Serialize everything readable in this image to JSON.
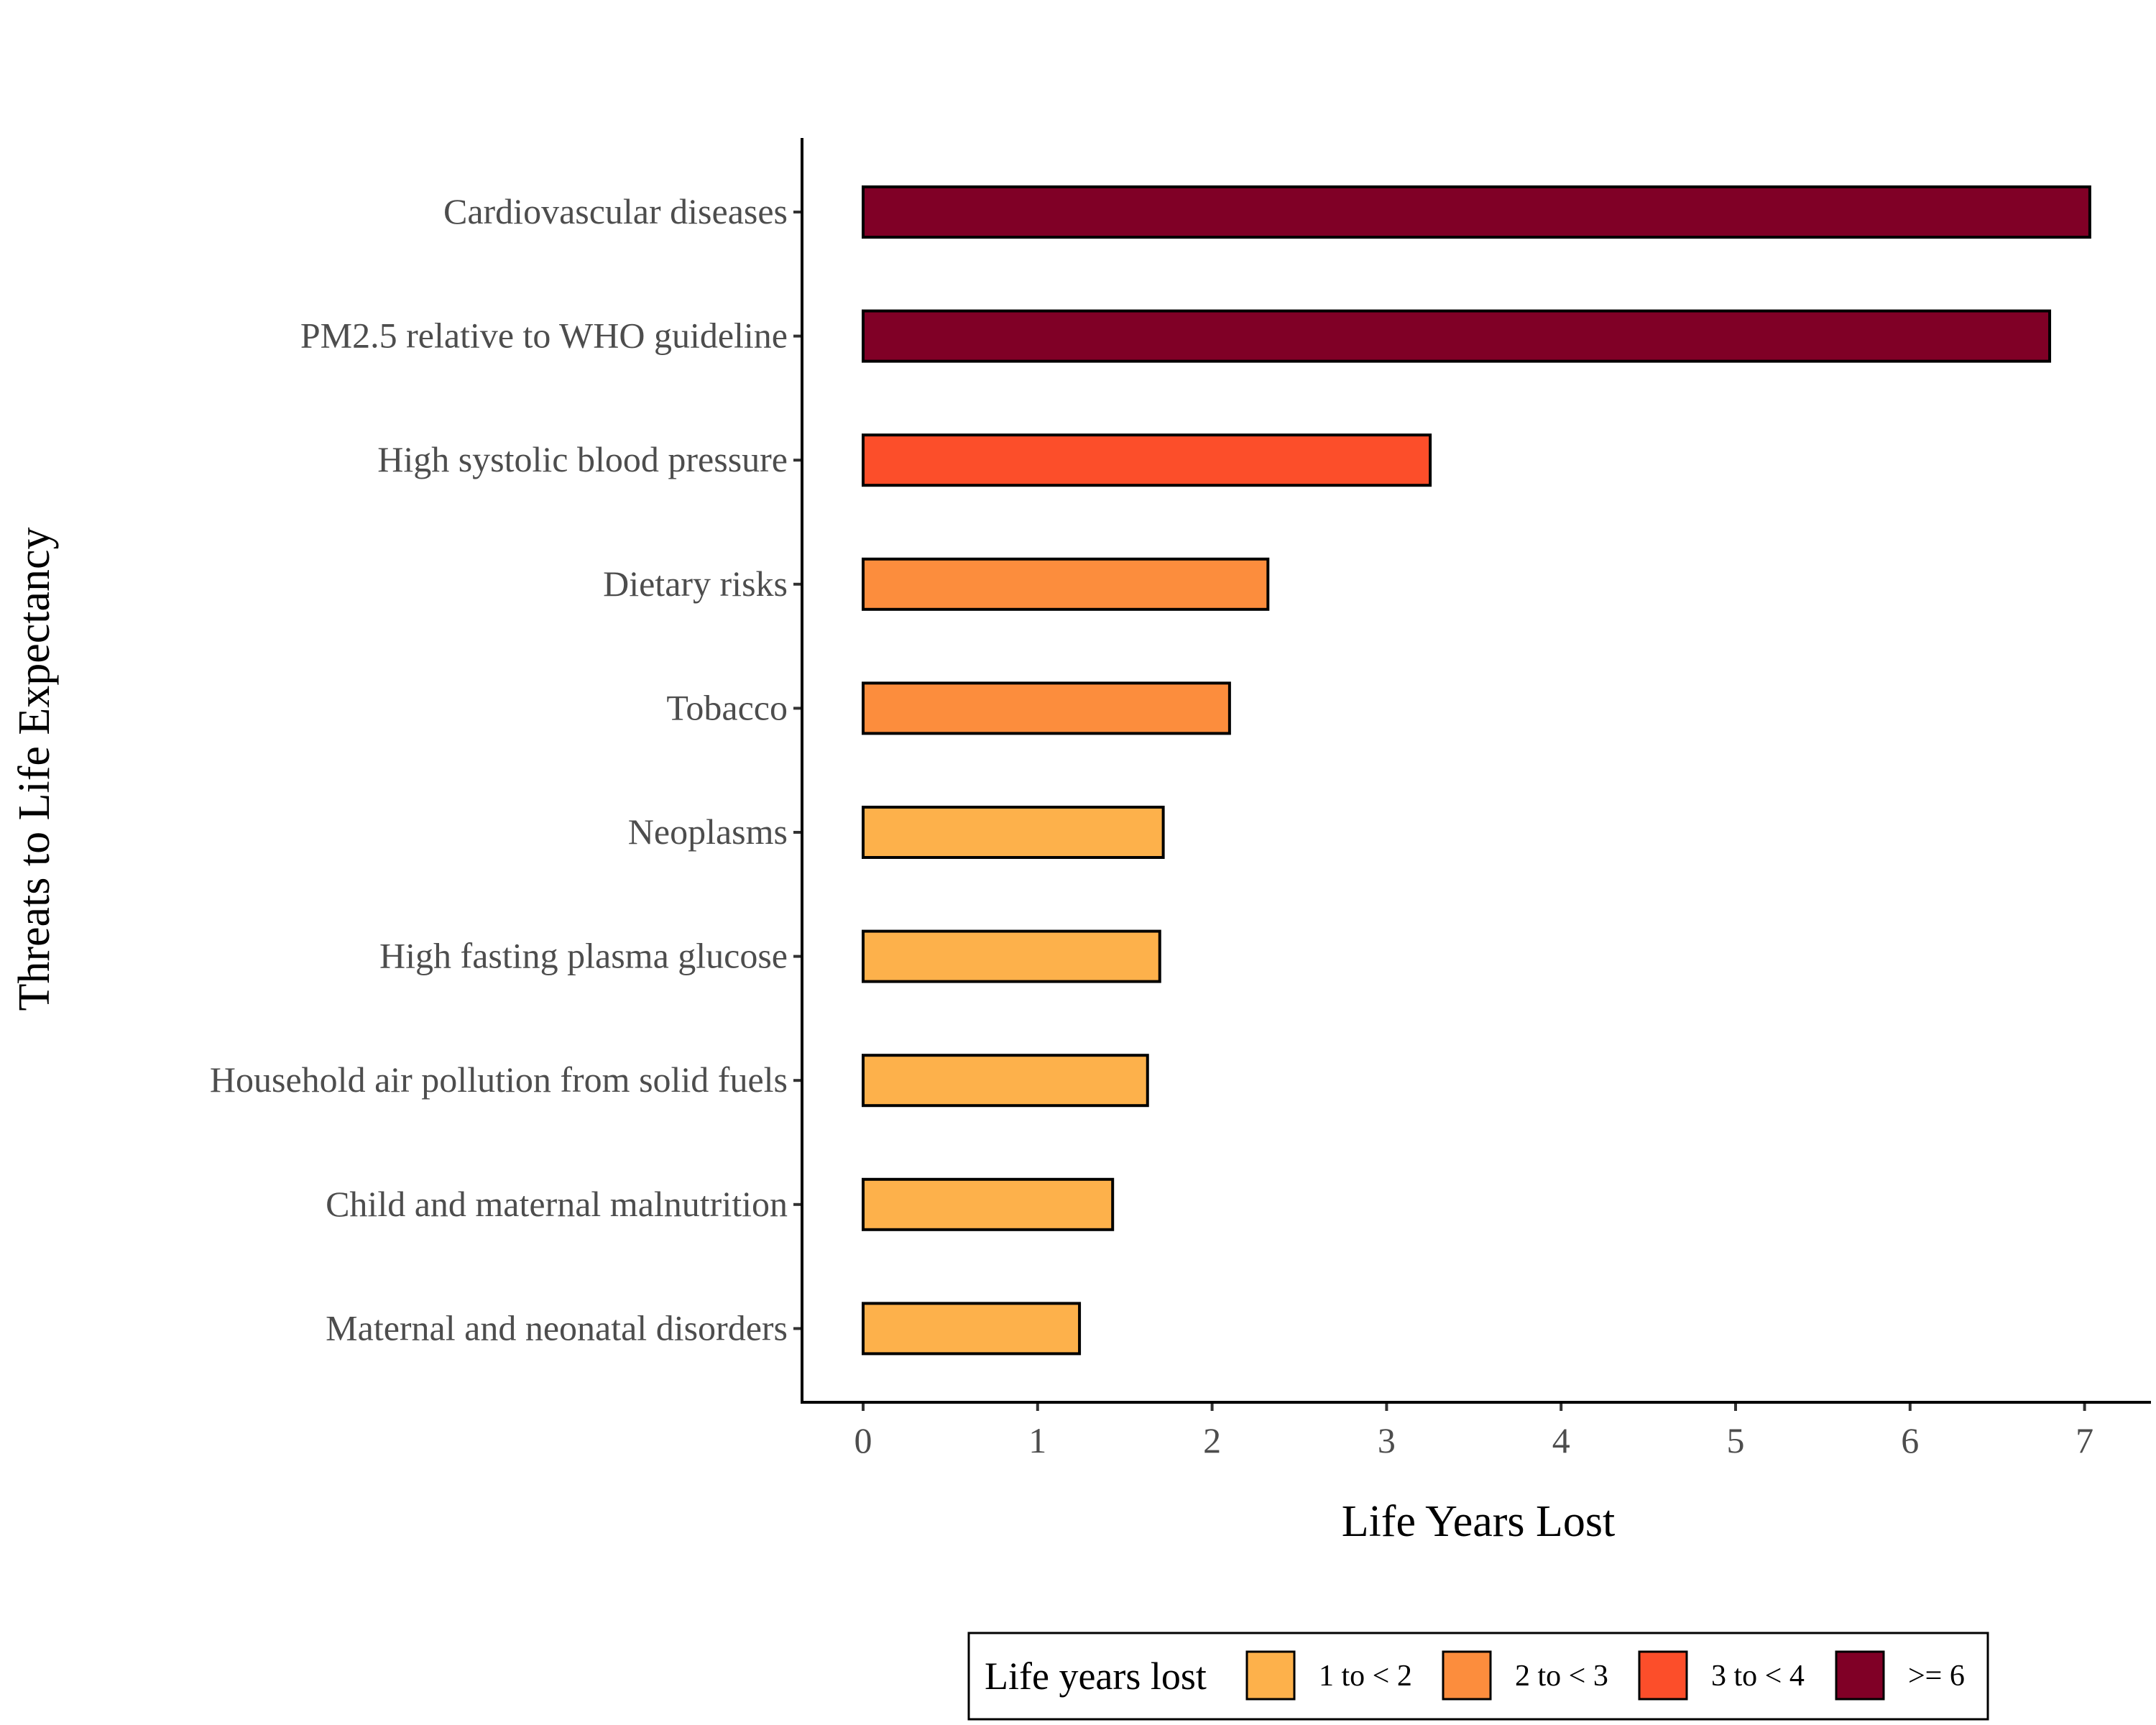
{
  "chart_data": {
    "type": "bar",
    "orientation": "horizontal",
    "xlabel": "Life Years Lost",
    "ylabel": "Threats to Life Expectancy",
    "xlim": [
      0,
      7
    ],
    "xticks": [
      "0",
      "1",
      "2",
      "3",
      "4",
      "5",
      "6",
      "7"
    ],
    "grid": false,
    "categories": [
      "Cardiovascular diseases",
      "PM2.5 relative to WHO guideline",
      "High systolic blood pressure",
      "Dietary risks",
      "Tobacco",
      "Neoplasms",
      "High fasting plasma glucose",
      "Household air pollution from solid fuels",
      "Child and maternal malnutrition",
      "Maternal and neonatal disorders"
    ],
    "values": [
      7.03,
      6.8,
      3.25,
      2.32,
      2.1,
      1.72,
      1.7,
      1.63,
      1.43,
      1.24
    ],
    "value_groups": [
      ">= 6",
      ">= 6",
      "3 to < 4",
      "2 to < 3",
      "2 to < 3",
      "1 to < 2",
      "1 to < 2",
      "1 to < 2",
      "1 to < 2",
      "1 to < 2"
    ],
    "legend": {
      "title": "Life years lost",
      "position": "bottom",
      "items": [
        {
          "label": "1 to < 2",
          "color": "#FDB14B"
        },
        {
          "label": "2 to < 3",
          "color": "#FC8D3D"
        },
        {
          "label": "3 to < 4",
          "color": "#FC4E2A"
        },
        {
          "label": ">= 6",
          "color": "#800026"
        }
      ]
    }
  }
}
